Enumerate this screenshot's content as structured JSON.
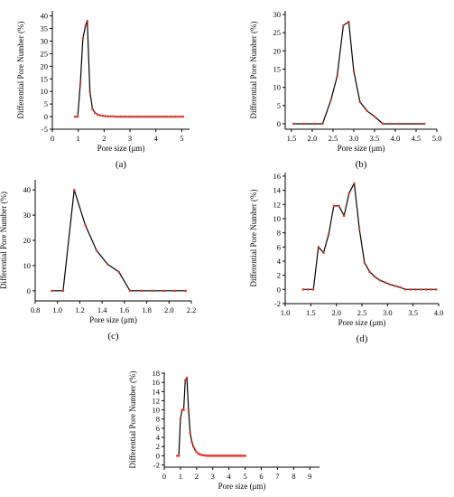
{
  "colors": {
    "line": "#000000",
    "marker": "#e8392e",
    "axis": "#000000"
  },
  "chart_data": [
    {
      "type": "line",
      "panel_label": "(a)",
      "xlabel": "Pore size (μm)",
      "ylabel": "Differential Pore Number (%)",
      "xlim": [
        0,
        5.3
      ],
      "ylim": [
        -5,
        42
      ],
      "xticks": [
        0,
        1,
        2,
        3,
        4,
        5
      ],
      "yticks": [
        -5,
        0,
        5,
        10,
        15,
        20,
        25,
        30,
        35,
        40
      ],
      "series": [
        {
          "x": [
            0.88,
            0.98,
            1.08,
            1.18,
            1.28,
            1.35,
            1.45,
            1.55,
            1.65,
            1.75,
            1.85,
            1.95,
            2.05,
            2.15,
            2.25,
            2.35,
            2.45,
            2.55,
            2.65,
            2.75,
            2.85,
            2.95,
            3.05,
            3.15,
            3.25,
            3.35,
            3.45,
            3.55,
            3.65,
            3.75,
            3.85,
            3.95,
            4.05,
            4.15,
            4.25,
            4.35,
            4.45,
            4.55,
            4.65,
            4.75,
            4.85,
            4.95,
            5.05
          ],
          "y": [
            0,
            0,
            13,
            31,
            36,
            38,
            10,
            3,
            1.5,
            0.8,
            0.5,
            0.3,
            0.2,
            0.1,
            0.1,
            0.1,
            0,
            0,
            0,
            0,
            0,
            0,
            0,
            0,
            0,
            0,
            0,
            0,
            0,
            0,
            0,
            0,
            0,
            0,
            0,
            0,
            0,
            0,
            0,
            0,
            0,
            0,
            0
          ]
        }
      ]
    },
    {
      "type": "line",
      "panel_label": "(b)",
      "xlabel": "Pore size (μm)",
      "ylabel": "Differential Pore Number (%)",
      "xlim": [
        1.35,
        5.0
      ],
      "ylim": [
        -1.5,
        31
      ],
      "xticks": [
        1.5,
        2.0,
        2.5,
        3.0,
        3.5,
        4.0,
        4.5,
        5.0
      ],
      "yticks": [
        0,
        5,
        10,
        15,
        20,
        25,
        30
      ],
      "series": [
        {
          "x": [
            1.55,
            1.8,
            2.05,
            2.25,
            2.45,
            2.6,
            2.75,
            2.88,
            3.0,
            3.15,
            3.32,
            3.5,
            3.7,
            3.9,
            4.1,
            4.3,
            4.5,
            4.7
          ],
          "y": [
            0,
            0,
            0,
            0,
            6.5,
            13,
            27,
            28,
            14.5,
            6,
            3.5,
            2,
            0,
            0,
            0,
            0,
            0,
            0
          ]
        }
      ]
    },
    {
      "type": "line",
      "panel_label": "(c)",
      "xlabel": "Pore size (μm)",
      "ylabel": "Differential Pore Number (%)",
      "xlim": [
        0.8,
        2.2
      ],
      "ylim": [
        -4,
        44
      ],
      "xticks": [
        0.8,
        1.0,
        1.2,
        1.4,
        1.6,
        1.8,
        2.0,
        2.2
      ],
      "yticks": [
        0,
        10,
        20,
        30,
        40
      ],
      "series": [
        {
          "x": [
            0.95,
            1.05,
            1.15,
            1.25,
            1.35,
            1.45,
            1.55,
            1.65,
            1.75,
            1.85,
            1.95,
            2.05,
            2.15
          ],
          "y": [
            0,
            0,
            40,
            26,
            16,
            10.5,
            7.5,
            0,
            0,
            0,
            0,
            0,
            0
          ]
        }
      ]
    },
    {
      "type": "line",
      "panel_label": "(d)",
      "xlabel": "Pore size (μm)",
      "ylabel": "Differential Pore Number (%)",
      "xlim": [
        1.0,
        4.0
      ],
      "ylim": [
        -2,
        16.5
      ],
      "xticks": [
        1.0,
        1.5,
        2.0,
        2.5,
        3.0,
        3.5,
        4.0
      ],
      "yticks": [
        -2,
        0,
        2,
        4,
        6,
        8,
        10,
        12,
        14,
        16
      ],
      "series": [
        {
          "x": [
            1.35,
            1.45,
            1.55,
            1.65,
            1.75,
            1.85,
            1.95,
            2.05,
            2.15,
            2.25,
            2.35,
            2.45,
            2.55,
            2.65,
            2.75,
            2.85,
            2.95,
            3.05,
            3.15,
            3.25,
            3.35,
            3.45,
            3.55,
            3.65,
            3.75,
            3.85,
            3.95
          ],
          "y": [
            0,
            0,
            0,
            6,
            5.2,
            7.8,
            11.8,
            11.8,
            10.4,
            13.6,
            15,
            8.5,
            3.8,
            2.5,
            1.8,
            1.3,
            1,
            0.7,
            0.5,
            0.3,
            0,
            0,
            0,
            0,
            0,
            0,
            0
          ]
        }
      ]
    },
    {
      "type": "line",
      "panel_label": "(e)",
      "xlabel": "Pore size (μm)",
      "ylabel": "Differential Pore Number (%)",
      "xlim": [
        0,
        9.6
      ],
      "ylim": [
        -2.5,
        18.2
      ],
      "xticks": [
        0,
        1,
        2,
        3,
        4,
        5,
        6,
        7,
        8,
        9
      ],
      "yticks": [
        -2,
        0,
        2,
        4,
        6,
        8,
        10,
        12,
        14,
        16,
        18
      ],
      "series": [
        {
          "x": [
            0.8,
            0.9,
            1.0,
            1.1,
            1.2,
            1.3,
            1.4,
            1.5,
            1.6,
            1.7,
            1.8,
            1.9,
            2.0,
            2.1,
            2.2,
            2.3,
            2.4,
            2.5,
            2.6,
            2.7,
            2.8,
            2.9,
            3.0,
            3.1,
            3.2,
            3.3,
            3.4,
            3.5,
            3.6,
            3.7,
            3.8,
            3.9,
            4.0,
            4.1,
            4.2,
            4.3,
            4.4,
            4.5,
            4.6,
            4.7,
            4.8,
            4.9,
            5.0
          ],
          "y": [
            0,
            0,
            8,
            10,
            10,
            16.5,
            17,
            10,
            5,
            3,
            2,
            1.3,
            0.8,
            0.5,
            0.3,
            0.2,
            0.1,
            0.1,
            0,
            0,
            0,
            0,
            0,
            0,
            0,
            0,
            0,
            0,
            0,
            0,
            0,
            0,
            0,
            0,
            0,
            0,
            0,
            0,
            0,
            0,
            0,
            0,
            0
          ]
        }
      ]
    }
  ]
}
